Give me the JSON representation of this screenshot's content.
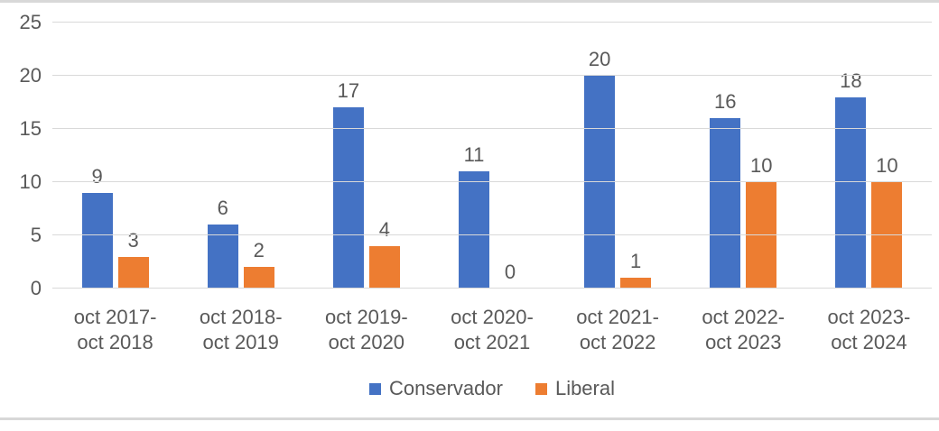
{
  "chart_data": {
    "type": "bar",
    "title": "",
    "xlabel": "",
    "ylabel": "",
    "categories": [
      "oct 2017-oct 2018",
      "oct 2018-oct 2019",
      "oct 2019-oct 2020",
      "oct 2020-oct 2021",
      "oct 2021-oct 2022",
      "oct 2022-oct 2023",
      "oct 2023-oct 2024"
    ],
    "series": [
      {
        "name": "Conservador",
        "color": "#4472C4",
        "values": [
          9,
          6,
          17,
          11,
          20,
          16,
          18
        ]
      },
      {
        "name": "Liberal",
        "color": "#ED7D31",
        "values": [
          3,
          2,
          4,
          0,
          1,
          10,
          10
        ]
      }
    ],
    "ylim": [
      0,
      25
    ],
    "yticks": [
      0,
      5,
      10,
      15,
      20,
      25
    ],
    "grid": "horizontal",
    "gridline_color": "#d9d9d9",
    "text_color": "#595959",
    "legend_position": "bottom",
    "data_labels": "outside-end"
  }
}
